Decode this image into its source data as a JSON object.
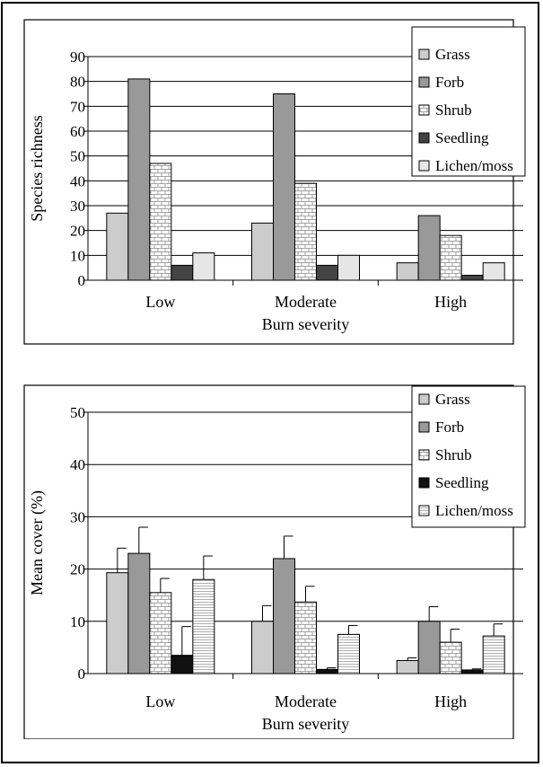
{
  "chart_data": [
    {
      "type": "bar",
      "categories": [
        "Low",
        "Moderate",
        "High"
      ],
      "xlabel": "Burn severity",
      "ylabel": "Species richness",
      "ylim": [
        0,
        90
      ],
      "yticks": [
        0,
        10,
        20,
        30,
        40,
        50,
        60,
        70,
        80,
        90
      ],
      "grid": true,
      "legend_position": "top-right",
      "series": [
        {
          "name": "Grass",
          "values": [
            27,
            23,
            7
          ],
          "color": "#cccccc",
          "pattern": "solid"
        },
        {
          "name": "Forb",
          "values": [
            81,
            75,
            26
          ],
          "color": "#999999",
          "pattern": "solid"
        },
        {
          "name": "Shrub",
          "values": [
            47,
            39,
            18
          ],
          "color": "#ffffff",
          "pattern": "brick"
        },
        {
          "name": "Seedling",
          "values": [
            6,
            6,
            2
          ],
          "color": "#444444",
          "pattern": "solid"
        },
        {
          "name": "Lichen/moss",
          "values": [
            11,
            10,
            7
          ],
          "color": "#e6e6e6",
          "pattern": "solid"
        }
      ]
    },
    {
      "type": "bar",
      "categories": [
        "Low",
        "Moderate",
        "High"
      ],
      "xlabel": "Burn severity",
      "ylabel": "Mean cover (%)",
      "ylim": [
        0,
        50
      ],
      "yticks": [
        0,
        10,
        20,
        30,
        40,
        50
      ],
      "grid": true,
      "legend_position": "top-right",
      "series": [
        {
          "name": "Grass",
          "values": [
            19.3,
            10,
            2.5
          ],
          "errors": [
            4.7,
            3,
            0.5
          ],
          "color": "#cccccc",
          "pattern": "solid"
        },
        {
          "name": "Forb",
          "values": [
            23,
            22,
            10
          ],
          "errors": [
            5,
            4.3,
            2.8
          ],
          "color": "#999999",
          "pattern": "solid"
        },
        {
          "name": "Shrub",
          "values": [
            15.5,
            13.7,
            6
          ],
          "errors": [
            2.7,
            3,
            2.5
          ],
          "color": "#ffffff",
          "pattern": "brick"
        },
        {
          "name": "Seedling",
          "values": [
            3.5,
            0.8,
            0.7
          ],
          "errors": [
            5.5,
            0.3,
            0.2
          ],
          "color": "#111111",
          "pattern": "solid"
        },
        {
          "name": "Lichen/moss",
          "values": [
            18,
            7.5,
            7.2
          ],
          "errors": [
            4.5,
            1.7,
            2.3
          ],
          "color": "#ffffff",
          "pattern": "hlines"
        }
      ]
    }
  ]
}
